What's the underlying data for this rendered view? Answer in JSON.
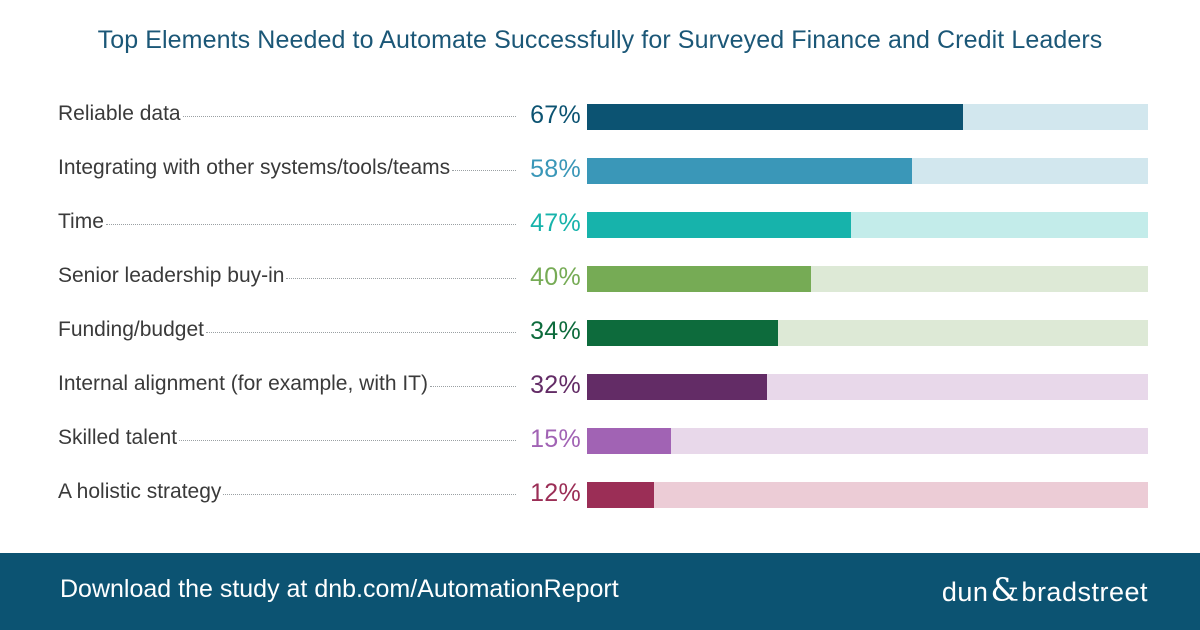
{
  "header": {
    "title": "Top Elements Needed to Automate Successfully for Surveyed Finance and Credit Leaders"
  },
  "chart_data": {
    "type": "bar",
    "title": "Top Elements Needed to Automate Successfully for Surveyed Finance and Credit Leaders",
    "orientation": "horizontal",
    "xlim": [
      0,
      100
    ],
    "grid": false,
    "categories": [
      "Reliable data",
      "Integrating with other systems/tools/teams",
      "Time",
      "Senior leadership buy-in",
      "Funding/budget",
      "Internal alignment (for example, with IT)",
      "Skilled talent",
      "A holistic strategy"
    ],
    "values": [
      67,
      58,
      47,
      40,
      34,
      32,
      15,
      12
    ],
    "value_labels": [
      "67%",
      "58%",
      "47%",
      "40%",
      "34%",
      "32%",
      "15%",
      "12%"
    ],
    "bar_colors": [
      "#0c5372",
      "#3a97b8",
      "#17b3ab",
      "#76ab55",
      "#0d6b3c",
      "#632c66",
      "#a163b4",
      "#9b2e56"
    ],
    "track_colors": [
      "#d2e7ee",
      "#d2e7ee",
      "#c3ecea",
      "#dde9d6",
      "#dde9d6",
      "#e8d8ea",
      "#e8d8ea",
      "#ecccd6"
    ]
  },
  "footer": {
    "text": "Download the study at dnb.com/AutomationReport",
    "logo_left": "dun",
    "logo_amp": "&",
    "logo_right": "bradstreet"
  }
}
